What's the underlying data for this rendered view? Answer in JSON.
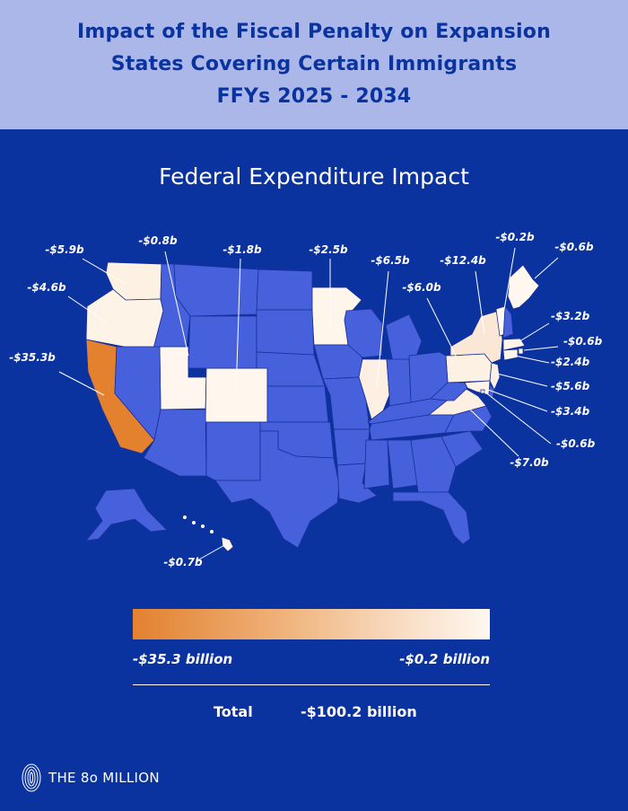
{
  "header": {
    "title_lines": [
      "Impact of the Fiscal Penalty on Expansion",
      "States Covering Certain Immigrants",
      "FFYs 2025 - 2034"
    ]
  },
  "subtitle": "Federal Expenditure Impact",
  "colors": {
    "background": "#0b33a0",
    "header_background": "#aab7e8",
    "non_expansion_state": "#4760dc",
    "scale_high": "#e3812f",
    "scale_low": "#fff8f0"
  },
  "map_data": {
    "unit": "billion USD",
    "states": [
      {
        "state": "Washington",
        "abbr": "WA",
        "label": "-$5.9b",
        "value": -5.9
      },
      {
        "state": "Oregon",
        "abbr": "OR",
        "label": "-$4.6b",
        "value": -4.6
      },
      {
        "state": "California",
        "abbr": "CA",
        "label": "-$35.3b",
        "value": -35.3
      },
      {
        "state": "Utah",
        "abbr": "UT",
        "label": "-$0.8b",
        "value": -0.8
      },
      {
        "state": "Colorado",
        "abbr": "CO",
        "label": "-$1.8b",
        "value": -1.8
      },
      {
        "state": "Minnesota",
        "abbr": "MN",
        "label": "-$2.5b",
        "value": -2.5
      },
      {
        "state": "Illinois",
        "abbr": "IL",
        "label": "-$6.5b",
        "value": -6.5
      },
      {
        "state": "Pennsylvania",
        "abbr": "PA",
        "label": "-$6.0b",
        "value": -6.0
      },
      {
        "state": "New York",
        "abbr": "NY",
        "label": "-$12.4b",
        "value": -12.4
      },
      {
        "state": "Vermont",
        "abbr": "VT",
        "label": "-$0.2b",
        "value": -0.2
      },
      {
        "state": "Maine",
        "abbr": "ME",
        "label": "-$0.6b",
        "value": -0.6
      },
      {
        "state": "Massachusetts",
        "abbr": "MA",
        "label": "-$3.2b",
        "value": -3.2
      },
      {
        "state": "Rhode Island",
        "abbr": "RI",
        "label": "-$0.6b",
        "value": -0.6
      },
      {
        "state": "Connecticut",
        "abbr": "CT",
        "label": "-$2.4b",
        "value": -2.4
      },
      {
        "state": "New Jersey",
        "abbr": "NJ",
        "label": "-$5.6b",
        "value": -5.6
      },
      {
        "state": "Maryland",
        "abbr": "MD",
        "label": "-$3.4b",
        "value": -3.4
      },
      {
        "state": "District of Columbia",
        "abbr": "DC",
        "label": "-$0.6b",
        "value": -0.6
      },
      {
        "state": "Virginia",
        "abbr": "VA",
        "label": "-$7.0b",
        "value": -7.0
      },
      {
        "state": "Hawaii",
        "abbr": "HI",
        "label": "-$0.7b",
        "value": -0.7
      }
    ]
  },
  "legend": {
    "min_label": "-$35.3 billion",
    "max_label": "-$0.2 billion"
  },
  "total": {
    "label": "Total",
    "value": "-$100.2 billion"
  },
  "brand": {
    "name": "THE 8o MILLION",
    "icon": "ripple-logo-icon"
  }
}
